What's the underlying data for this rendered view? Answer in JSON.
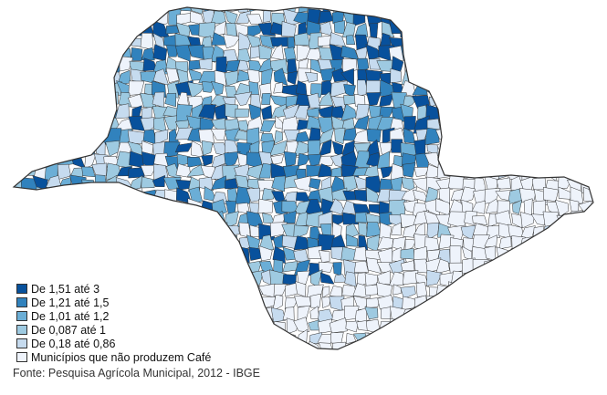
{
  "legend": {
    "items": [
      {
        "label": "De 1,51 até 3",
        "color": "#08519c"
      },
      {
        "label": "De 1,21 até 1,5",
        "color": "#3182bd"
      },
      {
        "label": "De 1,01 até 1,2",
        "color": "#6baed6"
      },
      {
        "label": "De 0,087 até 1",
        "color": "#9ecae1"
      },
      {
        "label": "De 0,18 até 0,86",
        "color": "#c6dbef"
      },
      {
        "label": "Municípios que não produzem Café",
        "color": "#eef3fb"
      }
    ]
  },
  "source": "Fonte: Pesquisa Agrícola Municipal, 2012 - IBGE",
  "colors": {
    "border": "#333333",
    "background": "#ffffff"
  }
}
